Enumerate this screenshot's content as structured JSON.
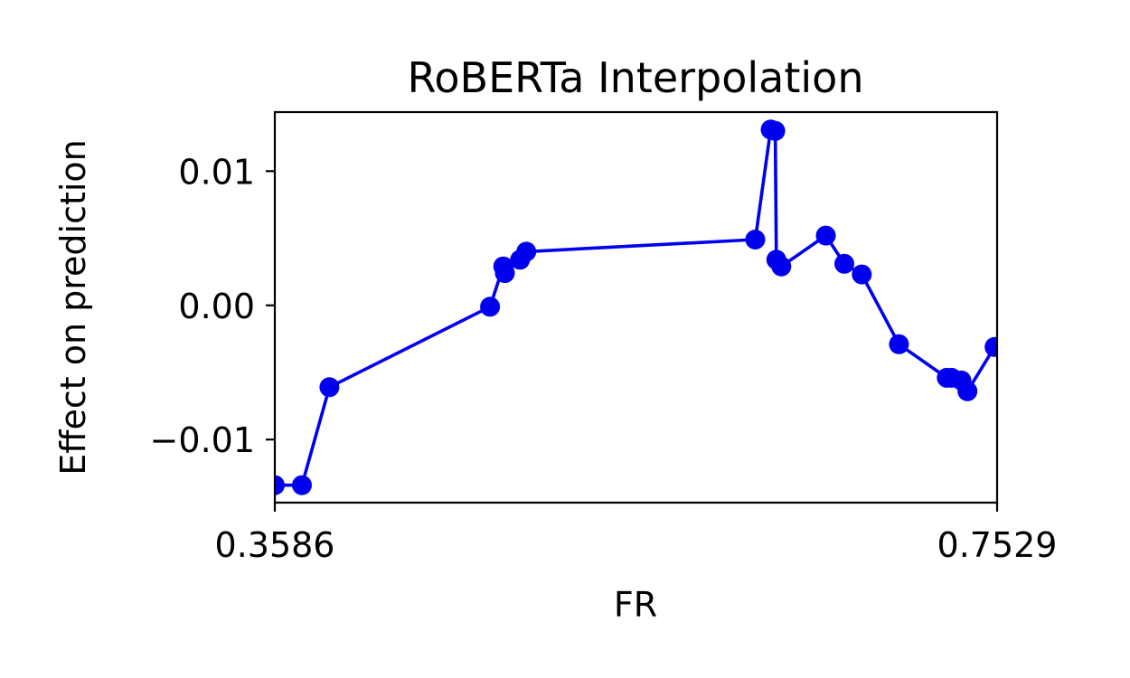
{
  "chart_data": {
    "type": "line",
    "title": "RoBERTa Interpolation",
    "xlabel": "FR",
    "ylabel": "Effect on prediction",
    "xlim": [
      0.3586,
      0.7529
    ],
    "ylim": [
      -0.0147,
      0.0144
    ],
    "x_ticks": [
      {
        "value": 0.3586,
        "label": "0.3586"
      },
      {
        "value": 0.7529,
        "label": "0.7529"
      }
    ],
    "y_ticks": [
      {
        "value": 0.01,
        "label": "0.01"
      },
      {
        "value": 0.0,
        "label": "0.00"
      },
      {
        "value": -0.01,
        "label": "−0.01"
      }
    ],
    "grid": false,
    "color": "#0000ee",
    "series": [
      {
        "x": [
          0.3586,
          0.3734,
          0.3884,
          0.4761,
          0.4833,
          0.4842,
          0.4925,
          0.4959,
          0.6209,
          0.6293,
          0.6318,
          0.6324,
          0.6351,
          0.6594,
          0.6695,
          0.679,
          0.6993,
          0.7254,
          0.728,
          0.7334,
          0.7367,
          0.7515
        ],
        "y": [
          -0.0134,
          -0.0134,
          -0.0061,
          -0.0001,
          0.0029,
          0.0024,
          0.0034,
          0.004,
          0.0049,
          0.0131,
          0.013,
          0.0034,
          0.0029,
          0.0052,
          0.0031,
          0.0023,
          -0.0029,
          -0.0054,
          -0.0054,
          -0.0056,
          -0.0064,
          -0.0031
        ]
      }
    ]
  }
}
